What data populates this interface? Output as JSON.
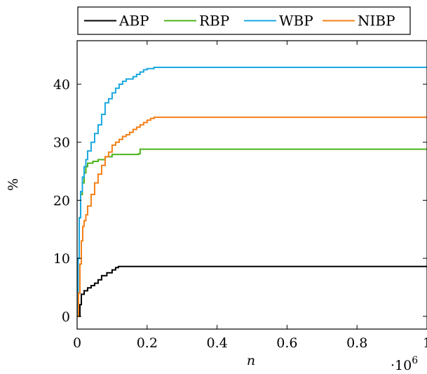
{
  "chart_data": {
    "type": "line",
    "xlabel": "n",
    "x_exponent_label": "·10",
    "x_exponent_power": "6",
    "ylabel": "%",
    "xlim": [
      0,
      1.0
    ],
    "ylim": [
      -2.2,
      47.5
    ],
    "x_ticks": [
      0,
      0.2,
      0.4,
      0.6,
      0.8,
      1
    ],
    "x_tick_labels": [
      "0",
      "0.2",
      "0.4",
      "0.6",
      "0.8",
      "1"
    ],
    "y_ticks": [
      0,
      10,
      20,
      30,
      40
    ],
    "y_tick_labels": [
      "0",
      "10",
      "20",
      "30",
      "40"
    ],
    "grid": false,
    "legend_position": "top",
    "series": [
      {
        "name": "ABP",
        "color": "#000000",
        "x": [
          0,
          0.005,
          0.008,
          0.012,
          0.02,
          0.03,
          0.04,
          0.05,
          0.06,
          0.07,
          0.085,
          0.1,
          0.11,
          0.118,
          1.0
        ],
        "y": [
          0,
          0,
          2.0,
          3.8,
          4.4,
          4.9,
          5.3,
          5.7,
          6.3,
          7.0,
          7.5,
          8.0,
          8.4,
          8.6,
          8.6
        ]
      },
      {
        "name": "RBP",
        "color": "#4db31a",
        "x": [
          0,
          0.003,
          0.006,
          0.01,
          0.015,
          0.02,
          0.025,
          0.03,
          0.045,
          0.06,
          0.08,
          0.1,
          0.175,
          0.18,
          1.0
        ],
        "y": [
          0,
          10,
          17,
          21,
          23,
          24.7,
          25.8,
          26.4,
          26.7,
          27.0,
          27.5,
          27.9,
          28.0,
          28.8,
          28.8
        ]
      },
      {
        "name": "WBP",
        "color": "#1aa8e0",
        "x": [
          0,
          0.003,
          0.006,
          0.01,
          0.015,
          0.02,
          0.025,
          0.03,
          0.04,
          0.05,
          0.06,
          0.07,
          0.08,
          0.09,
          0.1,
          0.11,
          0.12,
          0.13,
          0.14,
          0.16,
          0.17,
          0.18,
          0.19,
          0.2,
          0.22,
          1.0
        ],
        "y": [
          0,
          10,
          17,
          21.5,
          24,
          25.8,
          27,
          28.5,
          30,
          31.5,
          33,
          34.8,
          36.8,
          37.5,
          38.5,
          39.3,
          40,
          40.5,
          40.9,
          41.3,
          41.7,
          42.1,
          42.5,
          42.7,
          42.9,
          42.9
        ]
      },
      {
        "name": "NIBP",
        "color": "#f57f17",
        "x": [
          0,
          0.004,
          0.008,
          0.012,
          0.016,
          0.02,
          0.025,
          0.03,
          0.04,
          0.05,
          0.06,
          0.07,
          0.08,
          0.09,
          0.1,
          0.11,
          0.12,
          0.13,
          0.14,
          0.15,
          0.16,
          0.17,
          0.18,
          0.19,
          0.2,
          0.21,
          0.22,
          1.0
        ],
        "y": [
          0,
          4,
          9,
          13,
          15.5,
          16.5,
          17.5,
          19,
          21,
          23,
          24.5,
          26,
          27.5,
          28.3,
          29.5,
          30,
          30.5,
          31,
          31.3,
          31.7,
          32.2,
          32.6,
          33,
          33.4,
          33.8,
          34.1,
          34.3,
          34.3
        ]
      }
    ]
  }
}
